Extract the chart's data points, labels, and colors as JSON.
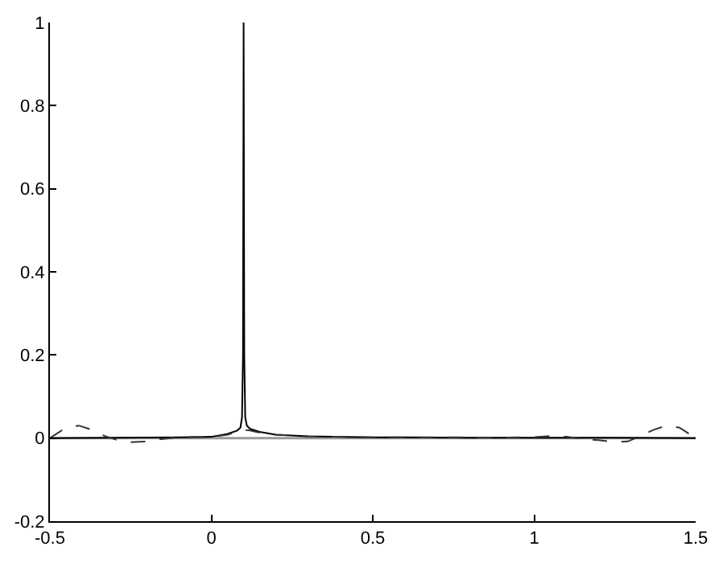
{
  "chart_data": {
    "type": "line",
    "xlim": [
      -0.5,
      1.5
    ],
    "xticks": [
      -0.5,
      0,
      0.5,
      1,
      1.5
    ],
    "ylim": [
      -0.2,
      1
    ],
    "yticks": [
      -0.2,
      0,
      0.2,
      0.4,
      0.6,
      0.8,
      1
    ],
    "grid": false,
    "marker": "none",
    "ref_lines": [
      {
        "axis": "y",
        "value": 0,
        "color": "#999999"
      }
    ],
    "series": [
      {
        "color": "#000000",
        "line_style": "solid",
        "x": [
          -0.5,
          -0.3,
          -0.1,
          0,
          0.05,
          0.08,
          0.09,
          0.095,
          0.098,
          0.1,
          0.102,
          0.105,
          0.11,
          0.12,
          0.15,
          0.2,
          0.3,
          0.5,
          0.8,
          1.0,
          1.2,
          1.5
        ],
        "values": [
          0,
          0.001,
          0.002,
          0.003,
          0.01,
          0.018,
          0.025,
          0.05,
          0.2,
          1,
          0.2,
          0.05,
          0.03,
          0.022,
          0.015,
          0.008,
          0.004,
          0.002,
          0.001,
          0.001,
          0.001,
          0
        ]
      },
      {
        "color": "#333333",
        "line_style": "dashed",
        "x": [
          -0.5,
          -0.45,
          -0.41,
          -0.37,
          -0.33,
          -0.29,
          -0.25,
          -0.2,
          -0.15,
          -0.1,
          0,
          0.05,
          0.08,
          0.1,
          0.12,
          0.15,
          0.2,
          0.3,
          0.5,
          0.7,
          0.9,
          1.0,
          1.05,
          1.1,
          1.15,
          1.2,
          1.25,
          1.29,
          1.33,
          1.37,
          1.41,
          1.45,
          1.5
        ],
        "values": [
          0,
          0.025,
          0.03,
          0.02,
          0.005,
          -0.005,
          -0.01,
          -0.008,
          -0.002,
          0.002,
          0.003,
          0.008,
          0.015,
          0.02,
          0.018,
          0.013,
          0.008,
          0.004,
          0.002,
          0.002,
          0.001,
          0.002,
          0.005,
          0.003,
          -0.002,
          -0.005,
          -0.01,
          -0.008,
          0.005,
          0.02,
          0.03,
          0.025,
          0
        ]
      }
    ]
  }
}
